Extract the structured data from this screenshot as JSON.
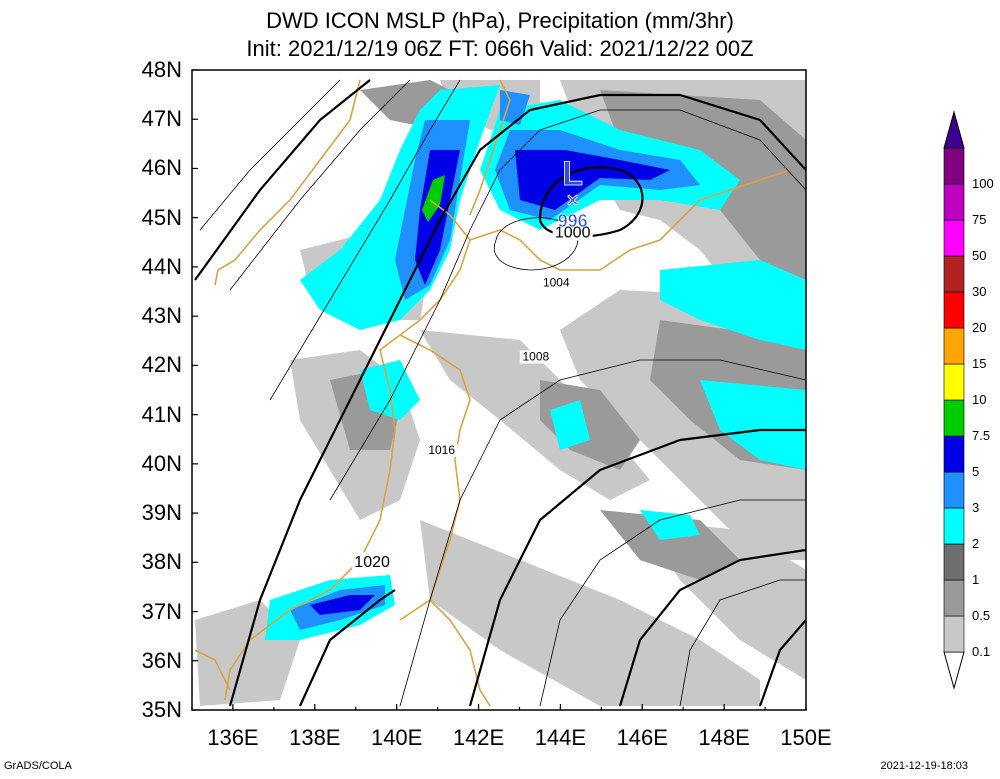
{
  "title": {
    "line1": "DWD ICON MSLP (hPa), Precipitation (mm/3hr)",
    "line2": "Init: 2021/12/19 06Z  FT: 066h  Valid: 2021/12/22 00Z"
  },
  "axes": {
    "lat_labels": [
      "48N",
      "47N",
      "46N",
      "45N",
      "44N",
      "43N",
      "42N",
      "41N",
      "40N",
      "39N",
      "38N",
      "37N",
      "36N",
      "35N"
    ],
    "lon_labels": [
      "136E",
      "138E",
      "140E",
      "142E",
      "144E",
      "146E",
      "148E",
      "150E"
    ],
    "lat_range": [
      35,
      48
    ],
    "lon_range": [
      135,
      150
    ]
  },
  "low_center": {
    "symbol": "L",
    "marker": "×",
    "pressure": "996",
    "lat": 45.3,
    "lon": 144.3,
    "color": "#2a4de0"
  },
  "isobar_labels": [
    {
      "text": "1000",
      "lat": 44.6,
      "lon": 144.3
    },
    {
      "text": "1004",
      "lat": 43.6,
      "lon": 143.9
    },
    {
      "text": "1008",
      "lat": 42.1,
      "lon": 143.4
    },
    {
      "text": "1016",
      "lat": 40.2,
      "lon": 141.1
    },
    {
      "text": "1020",
      "lat": 37.9,
      "lon": 139.4
    }
  ],
  "colorbar": {
    "colors": [
      "#ffffff",
      "#c8c8c8",
      "#9a9a9a",
      "#6e6e6e",
      "#00ffff",
      "#1e90ff",
      "#0000e6",
      "#00cd00",
      "#ffff00",
      "#ffa500",
      "#ff0000",
      "#b22222",
      "#ff00ff",
      "#c000c0",
      "#800080",
      "#3c0090"
    ],
    "labels": [
      "0.1",
      "0.5",
      "1",
      "2",
      "3",
      "5",
      "7.5",
      "10",
      "15",
      "20",
      "30",
      "50",
      "75",
      "100"
    ]
  },
  "footer": {
    "left": "GrADS/COLA",
    "right": "2021-12-19-18:03"
  }
}
